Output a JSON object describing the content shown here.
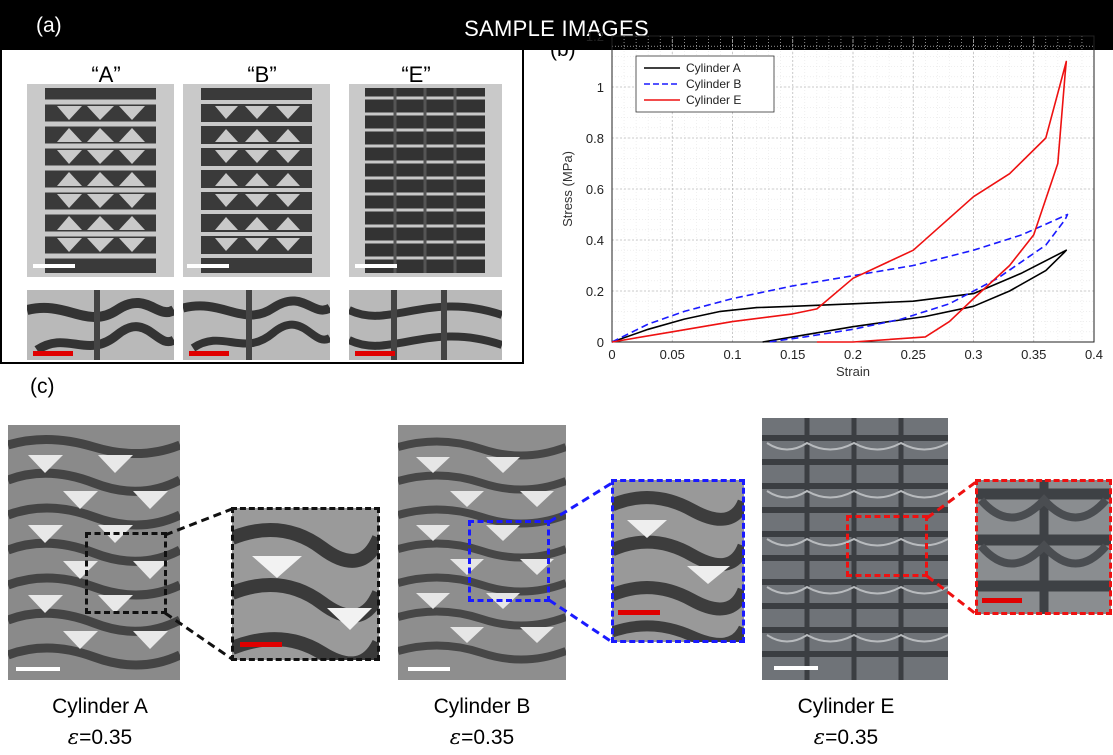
{
  "panel_a": {
    "tag": "(a)",
    "title": "SAMPLE IMAGES",
    "samples": [
      "“A”",
      "“B”",
      "“E”"
    ]
  },
  "panel_b": {
    "tag": "(b)"
  },
  "panel_c": {
    "tag": "(c)",
    "captions": [
      {
        "name": "Cylinder A",
        "eps_symbol": "ε",
        "eps_value": "=0.35"
      },
      {
        "name": "Cylinder B",
        "eps_symbol": "ε",
        "eps_value": "=0.35"
      },
      {
        "name": "Cylinder E",
        "eps_symbol": "ε",
        "eps_value": "=0.35"
      }
    ]
  },
  "colors": {
    "cylA": "#000000",
    "cylB": "#1a1aff",
    "cylE": "#ee1111",
    "scale_red": "#e00000"
  },
  "chart_data": {
    "type": "line",
    "xlabel": "Strain",
    "ylabel": "Stress (MPa)",
    "xlim": [
      0,
      0.4
    ],
    "ylim": [
      0,
      1.2
    ],
    "xticks": [
      0,
      0.05,
      0.1,
      0.15,
      0.2,
      0.25,
      0.3,
      0.35,
      0.4
    ],
    "xtick_labels": [
      "0",
      "0.05",
      "0.1",
      "0.15",
      "0.2",
      "0.25",
      "0.3",
      "0.35",
      "0.4"
    ],
    "yticks": [
      0,
      0.2,
      0.4,
      0.6,
      0.8,
      1.0,
      1.2
    ],
    "ytick_labels": [
      "0",
      "0.2",
      "0.4",
      "0.6",
      "0.8",
      "1",
      "1.2"
    ],
    "grid": true,
    "legend_position": "top-left",
    "series": [
      {
        "name": "Cylinder A",
        "style": "solid",
        "color": "#000000",
        "x": [
          0,
          0.03,
          0.06,
          0.09,
          0.12,
          0.15,
          0.2,
          0.25,
          0.3,
          0.34,
          0.377,
          0.375,
          0.36,
          0.33,
          0.3,
          0.26,
          0.2,
          0.15,
          0.125
        ],
        "y": [
          0,
          0.05,
          0.09,
          0.12,
          0.135,
          0.14,
          0.15,
          0.16,
          0.19,
          0.27,
          0.36,
          0.35,
          0.28,
          0.2,
          0.14,
          0.1,
          0.06,
          0.02,
          0
        ]
      },
      {
        "name": "Cylinder B",
        "style": "dashed",
        "color": "#1a1aff",
        "x": [
          0,
          0.03,
          0.06,
          0.1,
          0.15,
          0.2,
          0.25,
          0.3,
          0.34,
          0.378,
          0.376,
          0.36,
          0.32,
          0.28,
          0.24,
          0.2,
          0.16,
          0.13
        ],
        "y": [
          0,
          0.07,
          0.12,
          0.17,
          0.22,
          0.26,
          0.3,
          0.36,
          0.42,
          0.5,
          0.48,
          0.38,
          0.25,
          0.15,
          0.09,
          0.05,
          0.02,
          0
        ]
      },
      {
        "name": "Cylinder E",
        "style": "solid",
        "color": "#ee1111",
        "x": [
          0,
          0.05,
          0.1,
          0.15,
          0.17,
          0.2,
          0.25,
          0.3,
          0.33,
          0.36,
          0.377,
          0.376,
          0.37,
          0.35,
          0.33,
          0.3,
          0.28,
          0.26,
          0.2,
          0.17
        ],
        "y": [
          0,
          0.04,
          0.08,
          0.11,
          0.13,
          0.25,
          0.36,
          0.57,
          0.66,
          0.8,
          1.1,
          1.05,
          0.7,
          0.42,
          0.3,
          0.17,
          0.08,
          0.02,
          0,
          0
        ]
      }
    ]
  }
}
